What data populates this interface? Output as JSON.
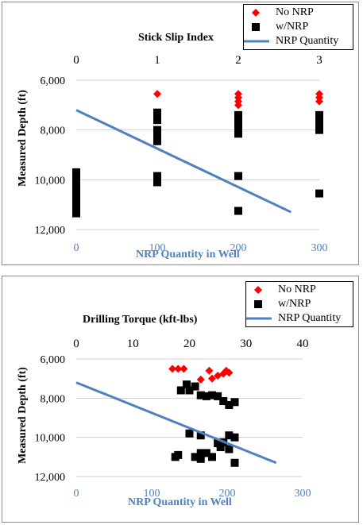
{
  "chart_data": [
    {
      "type": "scatter",
      "title": "Stick Slip Index",
      "xlabel": "NRP Quantity in Well",
      "ylabel": "Measured Depth (ft)",
      "x_bottom_ticks": [
        "0",
        "100",
        "200",
        "300"
      ],
      "x_top_ticks": [
        "0",
        "1",
        "2",
        "3"
      ],
      "y_ticks": [
        "6,000",
        "8,000",
        "10,000",
        "12,000"
      ],
      "x_bottom_range": [
        0,
        300
      ],
      "x_top_range": [
        0,
        3
      ],
      "y_range": [
        6000,
        12000
      ],
      "y_inverted": true,
      "grid": "horizontal",
      "legend_position": "top-right",
      "legend": [
        "No NRP",
        "w/NRP",
        "NRP Quantity"
      ],
      "series": [
        {
          "name": "No NRP",
          "marker": "diamond",
          "color": "#ff0000",
          "axis": "top",
          "points": [
            [
              1,
              6550
            ],
            [
              2,
              6550
            ],
            [
              2,
              6700
            ],
            [
              2,
              6850
            ],
            [
              2,
              7000
            ],
            [
              3,
              6550
            ],
            [
              3,
              6700
            ],
            [
              3,
              6850
            ]
          ]
        },
        {
          "name": "w/NRP",
          "marker": "square",
          "color": "#000000",
          "axis": "top",
          "points": [
            [
              0,
              9700
            ],
            [
              0,
              9850
            ],
            [
              0,
              10000
            ],
            [
              0,
              10150
            ],
            [
              0,
              10300
            ],
            [
              0,
              10450
            ],
            [
              0,
              10600
            ],
            [
              0,
              10750
            ],
            [
              0,
              10900
            ],
            [
              0,
              11050
            ],
            [
              0,
              11200
            ],
            [
              0,
              11350
            ],
            [
              1,
              7300
            ],
            [
              1,
              7450
            ],
            [
              1,
              7600
            ],
            [
              1,
              8000
            ],
            [
              1,
              8150
            ],
            [
              1,
              8300
            ],
            [
              1,
              8450
            ],
            [
              1,
              9850
            ],
            [
              1,
              10000
            ],
            [
              1,
              10100
            ],
            [
              2,
              7400
            ],
            [
              2,
              7550
            ],
            [
              2,
              7700
            ],
            [
              2,
              7850
            ],
            [
              2,
              8000
            ],
            [
              2,
              8150
            ],
            [
              2,
              9850
            ],
            [
              2,
              11250
            ],
            [
              3,
              7400
            ],
            [
              3,
              7550
            ],
            [
              3,
              7700
            ],
            [
              3,
              7850
            ],
            [
              3,
              8000
            ],
            [
              3,
              10550
            ]
          ]
        },
        {
          "name": "NRP Quantity",
          "type": "line",
          "color": "#4f81bd",
          "axis": "bottom",
          "points": [
            [
              0,
              7200
            ],
            [
              265,
              11300
            ]
          ]
        }
      ]
    },
    {
      "type": "scatter",
      "title": "Drilling Torque (kft-lbs)",
      "xlabel": "NRP Quantity in Well",
      "ylabel": "Measured Depth (ft)",
      "x_bottom_ticks": [
        "0",
        "100",
        "200",
        "300"
      ],
      "x_top_ticks": [
        "0",
        "10",
        "20",
        "30",
        "40"
      ],
      "y_ticks": [
        "6,000",
        "8,000",
        "10,000",
        "12,000"
      ],
      "x_bottom_range": [
        0,
        300
      ],
      "x_top_range": [
        0,
        40
      ],
      "y_range": [
        6000,
        12000
      ],
      "y_inverted": true,
      "grid": "horizontal",
      "legend_position": "top-right",
      "legend": [
        "No NRP",
        "w/NRP",
        "NRP Quantity"
      ],
      "series": [
        {
          "name": "No NRP",
          "marker": "diamond",
          "color": "#ff0000",
          "axis": "top",
          "points": [
            [
              17,
              6500
            ],
            [
              18,
              6500
            ],
            [
              19,
              6500
            ],
            [
              22,
              7050
            ],
            [
              23.5,
              6600
            ],
            [
              24,
              7000
            ],
            [
              25,
              6850
            ],
            [
              26,
              6750
            ],
            [
              26.5,
              6600
            ],
            [
              27,
              6700
            ]
          ]
        },
        {
          "name": "w/NRP",
          "marker": "square",
          "color": "#000000",
          "axis": "top",
          "points": [
            [
              17.5,
              11000
            ],
            [
              18,
              10900
            ],
            [
              18.5,
              7600
            ],
            [
              19.5,
              7300
            ],
            [
              20,
              7600
            ],
            [
              20,
              9800
            ],
            [
              21,
              7400
            ],
            [
              21,
              11000
            ],
            [
              22,
              7850
            ],
            [
              22,
              9900
            ],
            [
              22,
              10800
            ],
            [
              22,
              11100
            ],
            [
              23,
              7900
            ],
            [
              23,
              10800
            ],
            [
              24,
              7850
            ],
            [
              24,
              11000
            ],
            [
              25,
              7900
            ],
            [
              25,
              10300
            ],
            [
              25.5,
              10500
            ],
            [
              26,
              8150
            ],
            [
              26,
              10250
            ],
            [
              27,
              8350
            ],
            [
              27,
              9900
            ],
            [
              27,
              10600
            ],
            [
              28,
              8200
            ],
            [
              28,
              10000
            ],
            [
              28,
              11300
            ]
          ]
        },
        {
          "name": "NRP Quantity",
          "type": "line",
          "color": "#4f81bd",
          "axis": "bottom",
          "points": [
            [
              0,
              7200
            ],
            [
              265,
              11300
            ]
          ]
        }
      ]
    }
  ]
}
